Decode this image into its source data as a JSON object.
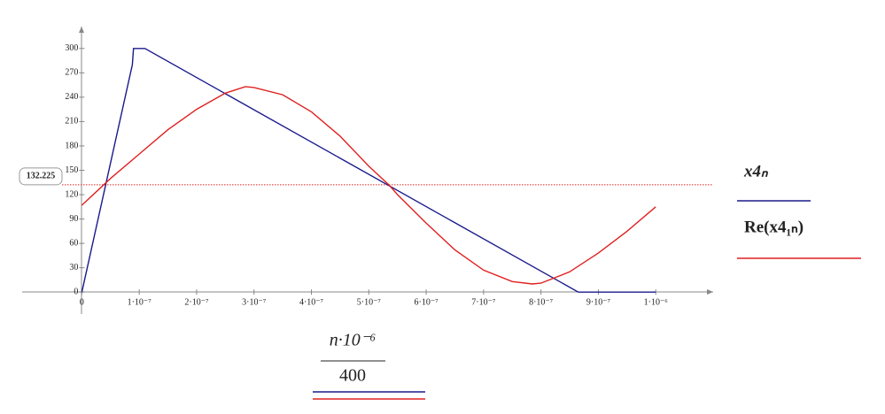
{
  "chart_data": {
    "type": "line",
    "x_label": {
      "numerator": "n·10⁻⁶",
      "denominator": "400"
    },
    "xlim": [
      -1.04e-07,
      1.1e-06
    ],
    "ylim": [
      -27,
      327
    ],
    "xticks": [
      {
        "value": 0,
        "label": "0"
      },
      {
        "value": 1e-07,
        "label": "1·10⁻⁷"
      },
      {
        "value": 2e-07,
        "label": "2·10⁻⁷"
      },
      {
        "value": 3e-07,
        "label": "3·10⁻⁷"
      },
      {
        "value": 4e-07,
        "label": "4·10⁻⁷"
      },
      {
        "value": 5e-07,
        "label": "5·10⁻⁷"
      },
      {
        "value": 6e-07,
        "label": "6·10⁻⁷"
      },
      {
        "value": 7e-07,
        "label": "7·10⁻⁷"
      },
      {
        "value": 8e-07,
        "label": "8·10⁻⁷"
      },
      {
        "value": 9e-07,
        "label": "9·10⁻⁷"
      },
      {
        "value": 1e-06,
        "label": "1·10⁻⁶"
      }
    ],
    "yticks": [
      0,
      30,
      60,
      90,
      120,
      150,
      180,
      210,
      240,
      270,
      300
    ],
    "y_marker": 132.225,
    "marker_color": "#e02020",
    "series": [
      {
        "name": "x4ₙ",
        "color": "#1a1a8c",
        "x": [
          0,
          8.8e-08,
          9e-08,
          1.1e-07,
          8.65e-07,
          1e-06
        ],
        "values": [
          0,
          280,
          300,
          300,
          0,
          0
        ]
      },
      {
        "name": "Re(x4₁ₙ)",
        "color": "#e02020",
        "x": [
          0,
          5e-08,
          1e-07,
          1.5e-07,
          2e-07,
          2.5e-07,
          2.85e-07,
          3e-07,
          3.5e-07,
          4e-07,
          4.5e-07,
          5e-07,
          5.35e-07,
          5.5e-07,
          6e-07,
          6.5e-07,
          7e-07,
          7.5e-07,
          7.85e-07,
          8e-07,
          8.5e-07,
          9e-07,
          9.5e-07,
          1e-06
        ],
        "values": [
          107,
          140,
          170,
          200,
          225,
          245,
          253,
          252,
          243,
          222,
          192,
          155,
          132,
          120,
          85,
          52,
          27,
          13,
          10,
          11,
          25,
          48,
          75,
          105
        ]
      }
    ]
  }
}
